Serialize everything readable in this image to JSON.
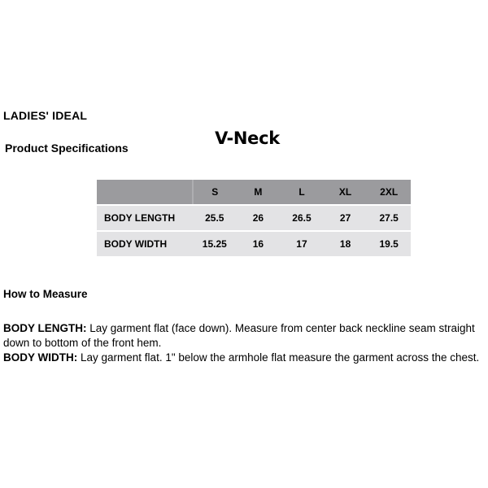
{
  "document": {
    "brand": "LADIES' IDEAL",
    "section_title": "Product Specifications",
    "product_name": "V-Neck"
  },
  "spec_table": {
    "size_headers": [
      "S",
      "M",
      "L",
      "XL",
      "2XL"
    ],
    "rows": [
      {
        "label": "BODY LENGTH",
        "values": [
          "25.5",
          "26",
          "26.5",
          "27",
          "27.5"
        ]
      },
      {
        "label": "BODY WIDTH",
        "values": [
          "15.25",
          "16",
          "17",
          "18",
          "19.5"
        ]
      }
    ]
  },
  "how_to_measure": {
    "heading": "How to Measure",
    "body_length": {
      "label": "BODY LENGTH:",
      "line1": "Lay garment flat (face down). Measure from center back neckline seam straight",
      "line2": "down to bottom of the front hem."
    },
    "body_width": {
      "label": "BODY WIDTH:",
      "line1": "Lay garment flat. 1\" below the armhole flat measure the garment across the chest."
    }
  },
  "colors": {
    "page_bg": "#ffffff",
    "text": "#000000",
    "table_header_bg": "#9b9b9e",
    "table_row_bg": "#e3e3e5",
    "row_separator": "#ffffff"
  }
}
